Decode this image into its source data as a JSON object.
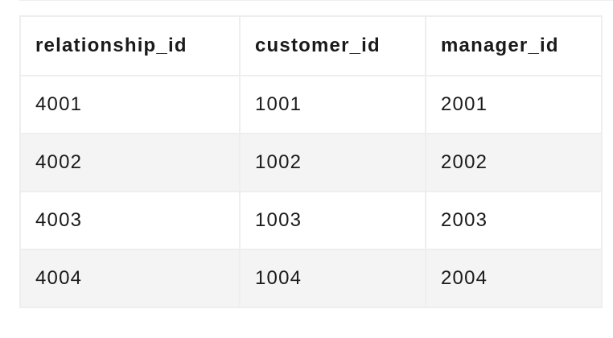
{
  "table": {
    "headers": [
      "relationship_id",
      "customer_id",
      "manager_id"
    ],
    "rows": [
      [
        "4001",
        "1001",
        "2001"
      ],
      [
        "4002",
        "1002",
        "2002"
      ],
      [
        "4003",
        "1003",
        "2003"
      ],
      [
        "4004",
        "1004",
        "2004"
      ]
    ]
  }
}
